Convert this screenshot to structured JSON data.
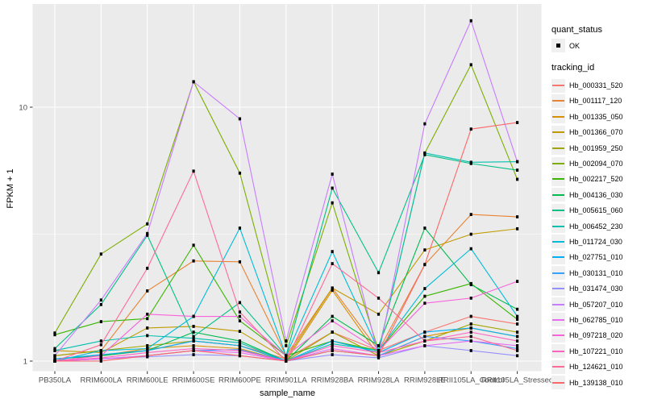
{
  "chart_data": {
    "type": "line",
    "title": "",
    "xlabel": "sample_name",
    "ylabel": "FPKM + 1",
    "y_scale": "log10",
    "y_ticks": [
      {
        "label": "1",
        "value": 1
      },
      {
        "label": "10",
        "value": 10
      }
    ],
    "y_minor_break": 3.1623,
    "ylim_approx": [
      0.92,
      25
    ],
    "grid": "on",
    "panel_bg": "#EBEBEB",
    "grid_color": "#FFFFFF",
    "tick_label_color": "#4D4D4D",
    "point_marker": "small black square",
    "legend_position": "right",
    "legend": {
      "quant_status_title": "quant_status",
      "quant_status_items": [
        "OK"
      ],
      "tracking_id_title": "tracking_id"
    },
    "samples": [
      "PB350LA",
      "RRIM600LA",
      "RRIM600LE",
      "RRIM600SE",
      "RRIM600PE",
      "RRIM901LA",
      "RRIM928BA",
      "RRIM928LA",
      "RRIM928LE",
      "RRII105LA_Control",
      "RRII105LA_Stressed"
    ],
    "series": [
      {
        "name": "Hb_000331_520",
        "color": "#F8766D",
        "values": [
          1.02,
          1.05,
          1.1,
          1.2,
          1.15,
          1.02,
          1.3,
          1.1,
          1.3,
          1.5,
          1.4
        ]
      },
      {
        "name": "Hb_001117_120",
        "color": "#EA8331",
        "values": [
          1.05,
          1.1,
          1.89,
          2.48,
          2.46,
          1.05,
          1.94,
          1.1,
          2.4,
          3.78,
          3.7
        ]
      },
      {
        "name": "Hb_001335_050",
        "color": "#D89000",
        "values": [
          1.0,
          1.05,
          1.12,
          1.15,
          1.12,
          1.0,
          1.9,
          1.05,
          1.25,
          1.35,
          1.25
        ]
      },
      {
        "name": "Hb_001366_070",
        "color": "#C09B00",
        "values": [
          1.1,
          1.08,
          1.35,
          1.37,
          1.31,
          1.02,
          1.94,
          1.53,
          2.74,
          3.16,
          3.32
        ]
      },
      {
        "name": "Hb_001959_250",
        "color": "#A3A500",
        "values": [
          1.05,
          1.1,
          1.15,
          1.2,
          1.15,
          1.0,
          1.3,
          1.05,
          1.2,
          1.4,
          1.3
        ]
      },
      {
        "name": "Hb_002094_070",
        "color": "#7CAE00",
        "values": [
          1.29,
          2.64,
          3.47,
          12.6,
          5.5,
          1.15,
          4.2,
          1.1,
          6.6,
          14.7,
          5.2
        ]
      },
      {
        "name": "Hb_002217_520",
        "color": "#39B600",
        "values": [
          1.27,
          1.43,
          1.47,
          2.86,
          1.44,
          1.05,
          1.2,
          1.1,
          1.8,
          2.02,
          1.46
        ]
      },
      {
        "name": "Hb_004136_030",
        "color": "#00BB4E",
        "values": [
          1.02,
          1.05,
          1.1,
          1.3,
          1.2,
          1.0,
          1.5,
          1.15,
          3.34,
          2.0,
          1.6
        ]
      },
      {
        "name": "Hb_005615_060",
        "color": "#00C087",
        "values": [
          1.12,
          1.67,
          3.13,
          1.25,
          1.7,
          1.05,
          4.8,
          2.23,
          6.5,
          6.0,
          5.65
        ]
      },
      {
        "name": "Hb_006452_230",
        "color": "#00C0AF",
        "values": [
          1.1,
          1.2,
          1.26,
          1.23,
          1.18,
          1.0,
          1.17,
          1.1,
          6.6,
          6.07,
          6.1
        ]
      },
      {
        "name": "Hb_011724_030",
        "color": "#00BCD8",
        "values": [
          1.0,
          1.1,
          1.12,
          1.5,
          3.34,
          1.05,
          2.7,
          1.1,
          1.93,
          2.77,
          1.5
        ]
      },
      {
        "name": "Hb_027751_010",
        "color": "#00B0F6",
        "values": [
          1.02,
          1.06,
          1.1,
          1.2,
          1.15,
          1.0,
          1.2,
          1.08,
          1.3,
          1.35,
          1.25
        ]
      },
      {
        "name": "Hb_030131_010",
        "color": "#35A2FF",
        "values": [
          1.0,
          1.02,
          1.05,
          1.1,
          1.11,
          1.0,
          1.1,
          1.05,
          1.25,
          1.2,
          1.12
        ]
      },
      {
        "name": "Hb_031474_030",
        "color": "#9590FF",
        "values": [
          1.0,
          1.02,
          1.04,
          1.06,
          1.05,
          1.0,
          1.06,
          1.03,
          1.15,
          1.1,
          1.05
        ]
      },
      {
        "name": "Hb_057207_010",
        "color": "#C77CFF",
        "values": [
          1.05,
          1.74,
          3.18,
          12.6,
          9.0,
          1.2,
          5.45,
          1.05,
          8.6,
          21.9,
          6.1
        ]
      },
      {
        "name": "Hb_062785_010",
        "color": "#E76BF3",
        "values": [
          1.0,
          1.02,
          1.05,
          1.1,
          1.08,
          1.0,
          1.12,
          1.05,
          1.15,
          1.2,
          1.15
        ]
      },
      {
        "name": "Hb_097218_020",
        "color": "#FA62DB",
        "values": [
          1.0,
          1.05,
          1.53,
          1.5,
          1.5,
          1.05,
          1.44,
          1.1,
          1.69,
          1.77,
          2.06
        ]
      },
      {
        "name": "Hb_107221_010",
        "color": "#FF61C2",
        "values": [
          1.0,
          1.03,
          1.08,
          1.12,
          1.1,
          1.0,
          1.15,
          1.08,
          1.2,
          1.3,
          1.2
        ]
      },
      {
        "name": "Hb_124621_010",
        "color": "#FF6A98",
        "values": [
          1.0,
          1.16,
          2.32,
          5.6,
          1.56,
          1.0,
          2.42,
          1.77,
          1.2,
          1.25,
          1.1
        ]
      },
      {
        "name": "Hb_139138_010",
        "color": "#FC6769",
        "values": [
          1.0,
          1.0,
          1.05,
          1.1,
          1.05,
          1.0,
          1.1,
          1.05,
          2.4,
          8.2,
          8.7
        ]
      }
    ]
  }
}
